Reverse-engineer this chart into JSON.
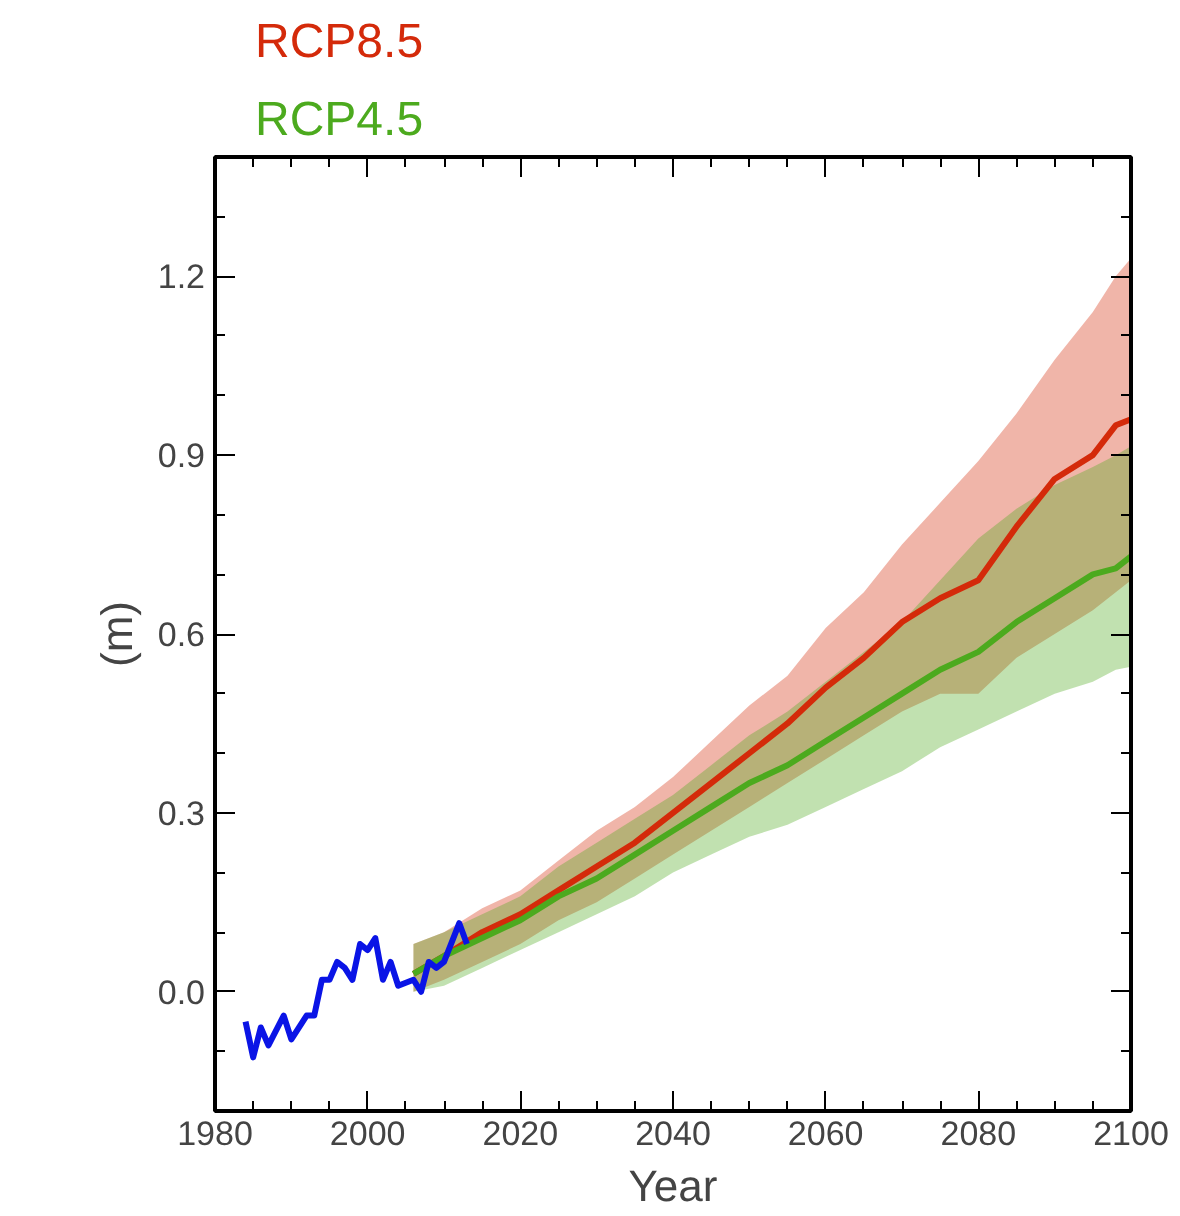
{
  "chart_data": {
    "type": "line",
    "xlabel": "Year",
    "ylabel": "(m)",
    "xlim": [
      1980,
      2100
    ],
    "xticks": [
      1980,
      2000,
      2020,
      2040,
      2060,
      2080,
      2100
    ],
    "ylim": [
      -0.2,
      1.4
    ],
    "yticks": [
      {
        "value": 0,
        "label": "0.0"
      },
      0.3,
      0.6,
      0.9,
      1.2
    ],
    "grid": false,
    "legend": "top left",
    "marker": "none",
    "line_style": "solid",
    "series": [
      {
        "name": "RCP8.5",
        "color": "#d42a0a",
        "x": [
          2006,
          2010,
          2015,
          2020,
          2025,
          2030,
          2035,
          2040,
          2045,
          2050,
          2055,
          2060,
          2065,
          2070,
          2075,
          2080,
          2085,
          2090,
          2095,
          2098,
          2100
        ],
        "values": [
          0.03,
          0.06,
          0.1,
          0.13,
          0.17,
          0.21,
          0.25,
          0.3,
          0.35,
          0.4,
          0.45,
          0.51,
          0.56,
          0.62,
          0.66,
          0.69,
          0.78,
          0.86,
          0.9,
          0.95,
          0.96
        ],
        "lower": [
          0.0,
          0.02,
          0.05,
          0.08,
          0.12,
          0.15,
          0.19,
          0.23,
          0.27,
          0.31,
          0.35,
          0.39,
          0.43,
          0.47,
          0.5,
          0.5,
          0.56,
          0.6,
          0.64,
          0.67,
          0.69
        ],
        "upper": [
          0.08,
          0.1,
          0.14,
          0.17,
          0.22,
          0.27,
          0.31,
          0.36,
          0.42,
          0.48,
          0.53,
          0.61,
          0.67,
          0.75,
          0.82,
          0.89,
          0.97,
          1.06,
          1.14,
          1.2,
          1.23
        ]
      },
      {
        "name": "RCP4.5",
        "color": "#4caa1e",
        "x": [
          2006,
          2010,
          2015,
          2020,
          2025,
          2030,
          2035,
          2040,
          2045,
          2050,
          2055,
          2060,
          2065,
          2070,
          2075,
          2080,
          2085,
          2090,
          2095,
          2098,
          2100
        ],
        "values": [
          0.03,
          0.06,
          0.09,
          0.12,
          0.16,
          0.19,
          0.23,
          0.27,
          0.31,
          0.35,
          0.38,
          0.42,
          0.46,
          0.5,
          0.54,
          0.57,
          0.62,
          0.66,
          0.7,
          0.71,
          0.73
        ],
        "lower": [
          0.0,
          0.01,
          0.04,
          0.07,
          0.1,
          0.13,
          0.16,
          0.2,
          0.23,
          0.26,
          0.28,
          0.31,
          0.34,
          0.37,
          0.41,
          0.44,
          0.47,
          0.5,
          0.52,
          0.54,
          0.545
        ],
        "upper": [
          0.08,
          0.1,
          0.13,
          0.16,
          0.21,
          0.25,
          0.29,
          0.33,
          0.38,
          0.43,
          0.47,
          0.52,
          0.57,
          0.62,
          0.69,
          0.76,
          0.81,
          0.85,
          0.88,
          0.9,
          0.915
        ]
      },
      {
        "color": "#0a14e6",
        "x": [
          1984,
          1985,
          1986,
          1987,
          1989,
          1990,
          1992,
          1993,
          1994,
          1995,
          1996,
          1997,
          1998,
          1999,
          2000,
          2001,
          2002,
          2003,
          2004,
          2006,
          2007,
          2008,
          2009,
          2010,
          2012,
          2013
        ],
        "values": [
          -0.05,
          -0.11,
          -0.06,
          -0.09,
          -0.04,
          -0.08,
          -0.04,
          -0.04,
          0.02,
          0.02,
          0.05,
          0.04,
          0.02,
          0.08,
          0.07,
          0.09,
          0.02,
          0.05,
          0.01,
          0.02,
          0.0,
          0.05,
          0.04,
          0.05,
          0.115,
          0.08
        ]
      }
    ]
  }
}
